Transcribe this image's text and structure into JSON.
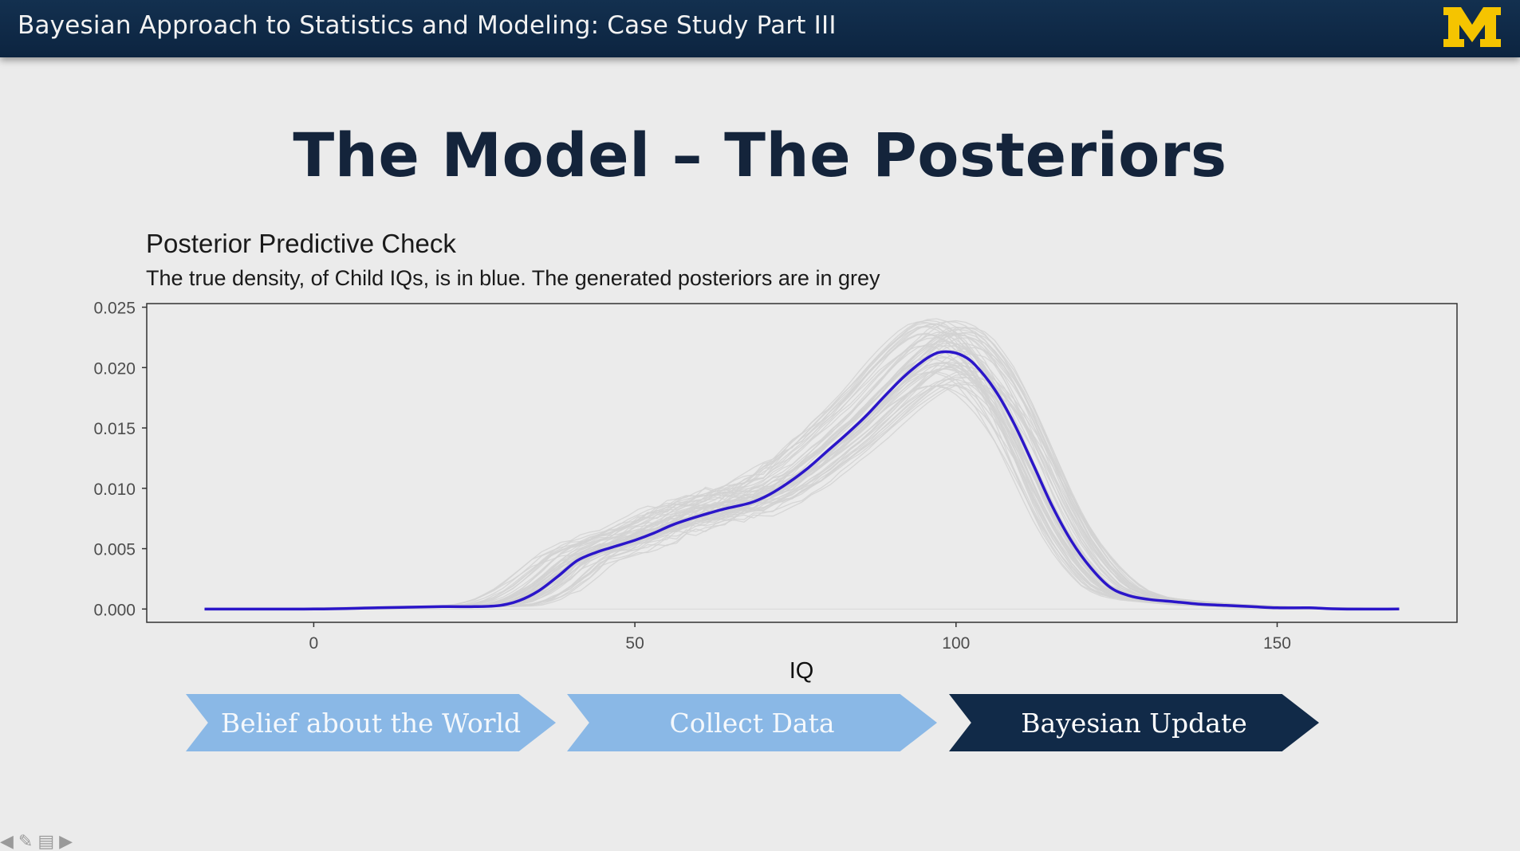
{
  "header": {
    "title": "Bayesian Approach to Statistics and Modeling: Case Study Part III",
    "logo_text": "M"
  },
  "slide": {
    "title": "The Model – The Posteriors"
  },
  "chart_data": {
    "type": "line",
    "title": "Posterior Predictive Check",
    "subtitle": "The true density, of Child IQs, is in blue. The generated posteriors are in grey",
    "xlabel": "IQ",
    "ylabel": "",
    "xlim": [
      -26,
      178
    ],
    "ylim": [
      -0.0011,
      0.0253
    ],
    "x_ticks": [
      0,
      50,
      100,
      150
    ],
    "y_ticks": [
      0.0,
      0.005,
      0.01,
      0.015,
      0.02,
      0.025
    ],
    "y_tick_labels": [
      "0.000",
      "0.005",
      "0.010",
      "0.015",
      "0.020",
      "0.025"
    ],
    "grid": false,
    "legend": "none",
    "series": [
      {
        "color": "#2b16c9",
        "x": [
          -17,
          0,
          10,
          20,
          25,
          29,
          32,
          35,
          38,
          41,
          44,
          47,
          50,
          53,
          56,
          60,
          64,
          68,
          71,
          74,
          77,
          80,
          83,
          86,
          89,
          92,
          95,
          97,
          99,
          101,
          103,
          106,
          109,
          112,
          115,
          118,
          121,
          124,
          127,
          130,
          134,
          138,
          142,
          146,
          150,
          155,
          160,
          169
        ],
        "y": [
          0.0,
          0.0,
          0.0001,
          0.0002,
          0.0002,
          0.0003,
          0.0007,
          0.0015,
          0.0027,
          0.004,
          0.0047,
          0.0052,
          0.0057,
          0.0063,
          0.007,
          0.0077,
          0.0083,
          0.0088,
          0.0095,
          0.0105,
          0.0117,
          0.0131,
          0.0145,
          0.016,
          0.0177,
          0.0193,
          0.0206,
          0.0212,
          0.0213,
          0.021,
          0.0202,
          0.0182,
          0.0154,
          0.012,
          0.0085,
          0.0056,
          0.0034,
          0.0018,
          0.0011,
          0.0008,
          0.0006,
          0.0004,
          0.0003,
          0.0002,
          0.0001,
          0.0001,
          0.0,
          0.0
        ]
      }
    ],
    "posterior_draws": {
      "color": "#d2d2d2",
      "count": 60,
      "peak_range": [
        0.0175,
        0.024
      ],
      "peak_x_range": [
        88,
        98
      ]
    }
  },
  "chevrons": [
    {
      "label": "Belief about the World",
      "style": "light"
    },
    {
      "label": "Collect Data",
      "style": "light"
    },
    {
      "label": "Bayesian Update",
      "style": "dark"
    }
  ],
  "nav_icons": [
    "arrow-left-icon",
    "pencil-icon",
    "menu-icon",
    "arrow-right-icon"
  ]
}
